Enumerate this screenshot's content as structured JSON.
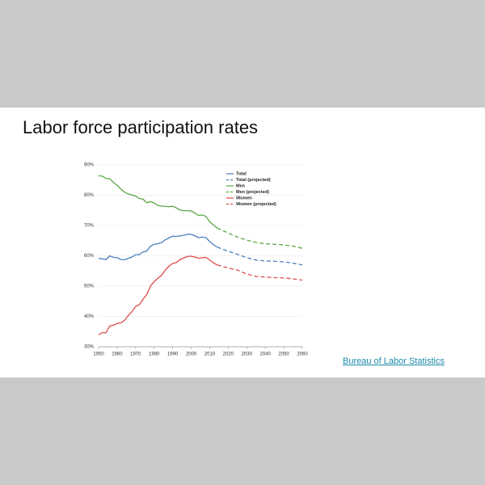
{
  "title": "Labor force participation rates",
  "source_link": "Bureau of Labor Statistics",
  "chart_data": {
    "type": "line",
    "xlim": [
      1950,
      2060
    ],
    "xticks": [
      1950,
      1960,
      1970,
      1980,
      1990,
      2000,
      2010,
      2020,
      2030,
      2040,
      2050,
      2060
    ],
    "ylim": [
      30,
      90
    ],
    "yticks": [
      {
        "value": 30,
        "label": "30%"
      },
      {
        "value": 40,
        "label": "40%"
      },
      {
        "value": 50,
        "label": "50%"
      },
      {
        "value": 60,
        "label": "60%"
      },
      {
        "value": 70,
        "label": "70%"
      },
      {
        "value": 80,
        "label": "80%"
      },
      {
        "value": 90,
        "label": "90%"
      }
    ],
    "grid": true,
    "series": [
      {
        "name": "Total",
        "color": "#4a7ebb",
        "dashed": false,
        "x": [
          1950,
          1952,
          1954,
          1956,
          1958,
          1960,
          1962,
          1964,
          1966,
          1968,
          1970,
          1972,
          1974,
          1976,
          1978,
          1980,
          1982,
          1984,
          1986,
          1988,
          1990,
          1992,
          1994,
          1996,
          1998,
          2000,
          2002,
          2004,
          2006,
          2008,
          2010,
          2012,
          2014
        ],
        "values": [
          59.2,
          59.0,
          58.8,
          60.0,
          59.5,
          59.4,
          58.8,
          58.7,
          59.2,
          59.6,
          60.4,
          60.4,
          61.3,
          61.6,
          63.2,
          63.8,
          64.0,
          64.4,
          65.3,
          65.9,
          66.5,
          66.4,
          66.6,
          66.8,
          67.1,
          67.1,
          66.6,
          66.0,
          66.2,
          66.0,
          64.7,
          63.7,
          62.9
        ]
      },
      {
        "name": "Total (projected)",
        "color": "#4a7ebb",
        "dashed": true,
        "x": [
          2014,
          2020,
          2025,
          2030,
          2035,
          2040,
          2045,
          2050,
          2055,
          2060
        ],
        "values": [
          62.9,
          61.5,
          60.5,
          59.4,
          58.6,
          58.3,
          58.2,
          58.0,
          57.6,
          57.0
        ]
      },
      {
        "name": "Men",
        "color": "#5aa845",
        "dashed": false,
        "x": [
          1950,
          1952,
          1954,
          1956,
          1958,
          1960,
          1962,
          1964,
          1966,
          1968,
          1970,
          1972,
          1974,
          1976,
          1978,
          1980,
          1982,
          1984,
          1986,
          1988,
          1990,
          1992,
          1994,
          1996,
          1998,
          2000,
          2002,
          2004,
          2006,
          2008,
          2010,
          2012,
          2014
        ],
        "values": [
          86.4,
          86.3,
          85.5,
          85.5,
          84.2,
          83.3,
          82.0,
          81.0,
          80.4,
          80.1,
          79.7,
          78.9,
          78.7,
          77.5,
          77.9,
          77.4,
          76.6,
          76.4,
          76.3,
          76.2,
          76.4,
          75.8,
          75.1,
          74.9,
          74.9,
          74.8,
          74.1,
          73.3,
          73.5,
          73.0,
          71.2,
          70.2,
          69.2
        ]
      },
      {
        "name": "Men (projected)",
        "color": "#5aa845",
        "dashed": true,
        "x": [
          2014,
          2020,
          2025,
          2030,
          2035,
          2040,
          2045,
          2050,
          2055,
          2060
        ],
        "values": [
          69.2,
          67.5,
          66.2,
          65.2,
          64.4,
          64.0,
          63.8,
          63.6,
          63.2,
          62.5
        ]
      },
      {
        "name": "Women",
        "color": "#e04a4a",
        "dashed": false,
        "x": [
          1950,
          1952,
          1954,
          1956,
          1958,
          1960,
          1962,
          1964,
          1966,
          1968,
          1970,
          1972,
          1974,
          1976,
          1978,
          1980,
          1982,
          1984,
          1986,
          1988,
          1990,
          1992,
          1994,
          1996,
          1998,
          2000,
          2002,
          2004,
          2006,
          2008,
          2010,
          2012,
          2014
        ],
        "values": [
          33.9,
          34.7,
          34.6,
          36.9,
          37.1,
          37.7,
          37.9,
          38.7,
          40.3,
          41.6,
          43.3,
          43.9,
          45.7,
          47.3,
          50.0,
          51.5,
          52.6,
          53.6,
          55.3,
          56.6,
          57.5,
          57.8,
          58.8,
          59.3,
          59.8,
          59.9,
          59.6,
          59.2,
          59.4,
          59.5,
          58.6,
          57.7,
          57.0
        ]
      },
      {
        "name": "Women (projected)",
        "color": "#e04a4a",
        "dashed": true,
        "x": [
          2014,
          2020,
          2025,
          2030,
          2035,
          2040,
          2045,
          2050,
          2055,
          2060
        ],
        "values": [
          57.0,
          56.0,
          55.3,
          54.0,
          53.2,
          53.0,
          52.8,
          52.7,
          52.4,
          52.0
        ]
      }
    ]
  }
}
